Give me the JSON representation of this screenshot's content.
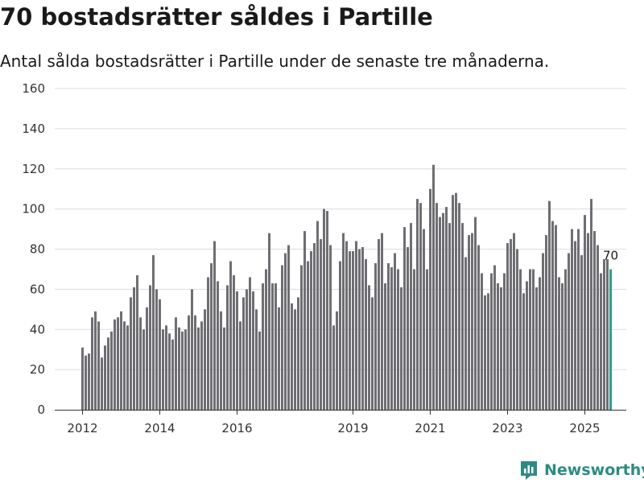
{
  "header": {
    "title": "70 bostadsrätter såldes i Partille",
    "subtitle": "Antal sålda bostadsrätter i Partille under de senaste tre månaderna."
  },
  "brand": {
    "name": "Newsworthy",
    "icon": "newsworthy-logo-icon"
  },
  "colors": {
    "bar": "#6e6e73",
    "highlight": "#2a9d8f",
    "grid": "#dcdcdc",
    "brand": "#2b8c84"
  },
  "chart_data": {
    "type": "bar",
    "title": "70 bostadsrätter såldes i Partille",
    "subtitle": "Antal sålda bostadsrätter i Partille under de senaste tre månaderna.",
    "xlabel": "",
    "ylabel": "",
    "ylim": [
      0,
      160
    ],
    "yticks": [
      0,
      20,
      40,
      60,
      80,
      100,
      120,
      140,
      160
    ],
    "xticks": [
      {
        "label": "2012",
        "index": 0
      },
      {
        "label": "2014",
        "index": 24
      },
      {
        "label": "2016",
        "index": 48
      },
      {
        "label": "2019",
        "index": 84
      },
      {
        "label": "2021",
        "index": 108
      },
      {
        "label": "2023",
        "index": 132
      },
      {
        "label": "2025",
        "index": 156
      }
    ],
    "grid": true,
    "frequency": "monthly",
    "start": "2012-01",
    "highlight_last": true,
    "last_label": "70",
    "values": [
      31,
      27,
      28,
      46,
      49,
      44,
      26,
      32,
      36,
      39,
      45,
      46,
      49,
      44,
      42,
      56,
      61,
      67,
      46,
      40,
      51,
      62,
      77,
      60,
      55,
      40,
      42,
      38,
      35,
      46,
      41,
      39,
      40,
      47,
      60,
      47,
      41,
      44,
      50,
      66,
      73,
      84,
      64,
      49,
      41,
      62,
      74,
      67,
      59,
      44,
      56,
      60,
      66,
      59,
      50,
      39,
      63,
      70,
      88,
      63,
      63,
      51,
      72,
      78,
      82,
      53,
      50,
      56,
      72,
      89,
      74,
      79,
      83,
      94,
      85,
      100,
      99,
      82,
      42,
      49,
      74,
      88,
      84,
      79,
      79,
      84,
      80,
      81,
      75,
      62,
      56,
      73,
      85,
      88,
      63,
      73,
      71,
      78,
      70,
      61,
      91,
      81,
      93,
      70,
      105,
      103,
      90,
      70,
      110,
      122,
      103,
      96,
      98,
      101,
      93,
      107,
      108,
      103,
      93,
      76,
      87,
      88,
      96,
      82,
      68,
      57,
      58,
      68,
      72,
      63,
      61,
      68,
      83,
      85,
      88,
      80,
      70,
      58,
      64,
      70,
      70,
      61,
      66,
      78,
      87,
      104,
      94,
      92,
      66,
      63,
      70,
      78,
      90,
      84,
      90,
      77,
      97,
      88,
      105,
      89,
      82,
      68,
      75,
      75,
      70
    ]
  }
}
